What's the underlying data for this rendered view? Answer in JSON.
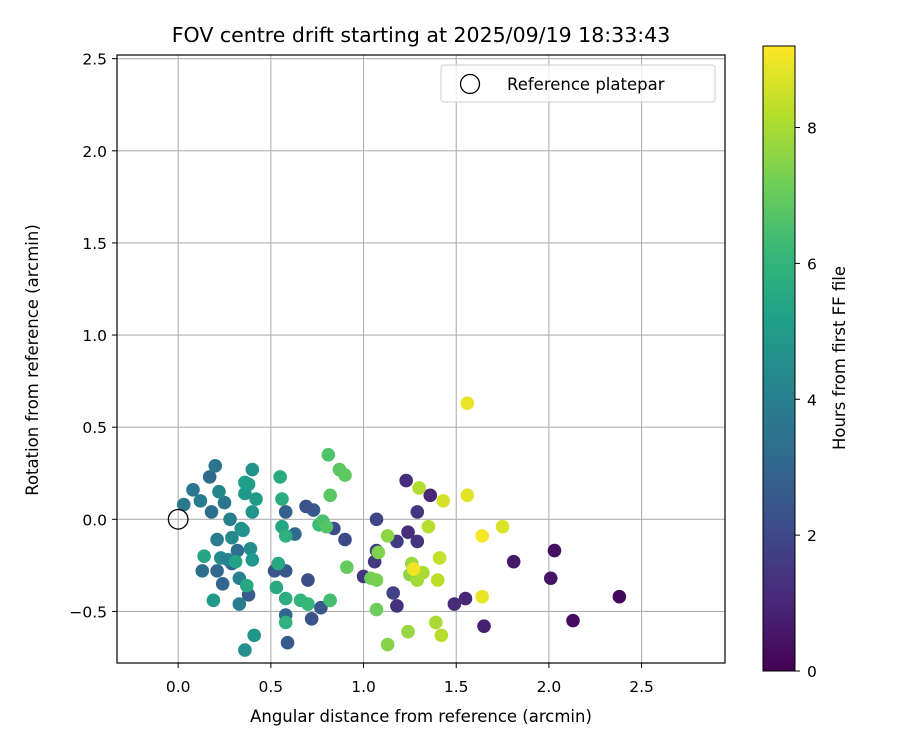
{
  "chart_data": {
    "type": "scatter",
    "title": "FOV centre drift starting at 2025/09/19 18:33:43",
    "xlabel": "Angular distance from reference (arcmin)",
    "ylabel": "Rotation from reference (arcmin)",
    "xlim": [
      -0.33,
      2.95
    ],
    "ylim": [
      -0.78,
      2.52
    ],
    "xticks": [
      0.0,
      0.5,
      1.0,
      1.5,
      2.0,
      2.5
    ],
    "xtick_labels": [
      "0.0",
      "0.5",
      "1.0",
      "1.5",
      "2.0",
      "2.5"
    ],
    "yticks": [
      -0.5,
      0.0,
      0.5,
      1.0,
      1.5,
      2.0,
      2.5
    ],
    "ytick_labels": [
      "−0.5",
      "0.0",
      "0.5",
      "1.0",
      "1.5",
      "2.0",
      "2.5"
    ],
    "grid": true,
    "legend": {
      "label": "Reference platepar",
      "placement": "top-right"
    },
    "reference_point": {
      "x": 0.0,
      "y": 0.0
    },
    "colorbar": {
      "label": "Hours from first FF file",
      "colormap": "viridis",
      "range": [
        0,
        9.2
      ],
      "ticks": [
        0,
        2,
        4,
        6,
        8
      ],
      "tick_labels": [
        "0",
        "2",
        "4",
        "6",
        "8"
      ]
    },
    "points": [
      {
        "x": 2.38,
        "y": -0.42,
        "c": 0.2
      },
      {
        "x": 2.13,
        "y": -0.55,
        "c": 0.3
      },
      {
        "x": 2.03,
        "y": -0.17,
        "c": 0.4
      },
      {
        "x": 2.01,
        "y": -0.32,
        "c": 0.5
      },
      {
        "x": 1.81,
        "y": -0.23,
        "c": 0.6
      },
      {
        "x": 1.65,
        "y": -0.58,
        "c": 0.8
      },
      {
        "x": 1.55,
        "y": -0.43,
        "c": 1.0
      },
      {
        "x": 1.49,
        "y": -0.46,
        "c": 1.1
      },
      {
        "x": 1.36,
        "y": 0.13,
        "c": 1.0
      },
      {
        "x": 1.23,
        "y": 0.21,
        "c": 1.2
      },
      {
        "x": 1.29,
        "y": 0.04,
        "c": 1.5
      },
      {
        "x": 1.29,
        "y": -0.12,
        "c": 1.4
      },
      {
        "x": 1.24,
        "y": -0.07,
        "c": 1.2
      },
      {
        "x": 1.18,
        "y": -0.12,
        "c": 1.6
      },
      {
        "x": 1.16,
        "y": -0.4,
        "c": 1.8
      },
      {
        "x": 1.18,
        "y": -0.47,
        "c": 1.3
      },
      {
        "x": 1.07,
        "y": 0.0,
        "c": 1.9
      },
      {
        "x": 1.07,
        "y": -0.17,
        "c": 1.7
      },
      {
        "x": 1.06,
        "y": -0.23,
        "c": 1.5
      },
      {
        "x": 1.0,
        "y": -0.31,
        "c": 1.4
      },
      {
        "x": 0.9,
        "y": -0.11,
        "c": 2.0
      },
      {
        "x": 0.84,
        "y": -0.05,
        "c": 2.2
      },
      {
        "x": 0.73,
        "y": 0.05,
        "c": 2.6
      },
      {
        "x": 0.69,
        "y": 0.07,
        "c": 2.3
      },
      {
        "x": 0.58,
        "y": 0.04,
        "c": 2.8
      },
      {
        "x": 0.58,
        "y": -0.28,
        "c": 2.5
      },
      {
        "x": 0.52,
        "y": -0.28,
        "c": 2.4
      },
      {
        "x": 0.7,
        "y": -0.33,
        "c": 2.2
      },
      {
        "x": 0.72,
        "y": -0.54,
        "c": 2.3
      },
      {
        "x": 0.77,
        "y": -0.48,
        "c": 2.5
      },
      {
        "x": 0.59,
        "y": -0.67,
        "c": 2.6
      },
      {
        "x": 0.58,
        "y": -0.52,
        "c": 3.0
      },
      {
        "x": 0.63,
        "y": -0.08,
        "c": 3.2
      },
      {
        "x": 0.38,
        "y": -0.41,
        "c": 2.7
      },
      {
        "x": 0.29,
        "y": -0.24,
        "c": 2.8
      },
      {
        "x": 0.32,
        "y": -0.17,
        "c": 3.3
      },
      {
        "x": 0.24,
        "y": -0.35,
        "c": 3.0
      },
      {
        "x": 0.21,
        "y": -0.28,
        "c": 3.1
      },
      {
        "x": 0.13,
        "y": -0.28,
        "c": 3.4
      },
      {
        "x": 0.17,
        "y": 0.23,
        "c": 3.2
      },
      {
        "x": 0.2,
        "y": 0.29,
        "c": 3.5
      },
      {
        "x": 0.08,
        "y": 0.16,
        "c": 3.6
      },
      {
        "x": 0.03,
        "y": 0.08,
        "c": 3.7
      },
      {
        "x": 0.12,
        "y": 0.1,
        "c": 3.8
      },
      {
        "x": 0.18,
        "y": 0.04,
        "c": 3.3
      },
      {
        "x": 0.25,
        "y": 0.09,
        "c": 3.6
      },
      {
        "x": 0.22,
        "y": 0.15,
        "c": 4.2
      },
      {
        "x": 0.28,
        "y": 0.0,
        "c": 4.0
      },
      {
        "x": 0.29,
        "y": -0.1,
        "c": 4.3
      },
      {
        "x": 0.21,
        "y": -0.11,
        "c": 3.8
      },
      {
        "x": 0.23,
        "y": -0.21,
        "c": 4.4
      },
      {
        "x": 0.27,
        "y": -0.22,
        "c": 4.1
      },
      {
        "x": 0.33,
        "y": -0.32,
        "c": 4.0
      },
      {
        "x": 0.33,
        "y": -0.46,
        "c": 3.9
      },
      {
        "x": 0.36,
        "y": -0.71,
        "c": 4.6
      },
      {
        "x": 0.4,
        "y": 0.27,
        "c": 4.7
      },
      {
        "x": 0.4,
        "y": 0.04,
        "c": 4.8
      },
      {
        "x": 0.39,
        "y": -0.16,
        "c": 4.5
      },
      {
        "x": 0.4,
        "y": -0.22,
        "c": 4.9
      },
      {
        "x": 0.41,
        "y": -0.63,
        "c": 4.8
      },
      {
        "x": 0.36,
        "y": 0.14,
        "c": 4.9
      },
      {
        "x": 0.42,
        "y": 0.11,
        "c": 5.0
      },
      {
        "x": 0.36,
        "y": 0.2,
        "c": 5.2
      },
      {
        "x": 0.38,
        "y": 0.19,
        "c": 5.1
      },
      {
        "x": 0.34,
        "y": -0.05,
        "c": 4.6
      },
      {
        "x": 0.35,
        "y": -0.06,
        "c": 4.7
      },
      {
        "x": 0.19,
        "y": -0.44,
        "c": 5.0
      },
      {
        "x": 0.14,
        "y": -0.2,
        "c": 5.4
      },
      {
        "x": 0.31,
        "y": -0.23,
        "c": 5.3
      },
      {
        "x": 0.37,
        "y": -0.36,
        "c": 5.5
      },
      {
        "x": 0.55,
        "y": 0.23,
        "c": 5.6
      },
      {
        "x": 0.56,
        "y": 0.11,
        "c": 5.7
      },
      {
        "x": 0.56,
        "y": -0.04,
        "c": 5.4
      },
      {
        "x": 0.58,
        "y": -0.09,
        "c": 5.8
      },
      {
        "x": 0.54,
        "y": -0.24,
        "c": 5.5
      },
      {
        "x": 0.53,
        "y": -0.37,
        "c": 5.6
      },
      {
        "x": 0.58,
        "y": -0.43,
        "c": 5.7
      },
      {
        "x": 0.58,
        "y": -0.56,
        "c": 5.9
      },
      {
        "x": 0.66,
        "y": -0.44,
        "c": 6.0
      },
      {
        "x": 0.7,
        "y": -0.46,
        "c": 6.1
      },
      {
        "x": 0.76,
        "y": -0.03,
        "c": 6.2
      },
      {
        "x": 0.78,
        "y": -0.01,
        "c": 6.5
      },
      {
        "x": 0.8,
        "y": -0.04,
        "c": 6.7
      },
      {
        "x": 0.81,
        "y": 0.35,
        "c": 6.6
      },
      {
        "x": 0.87,
        "y": 0.27,
        "c": 6.8
      },
      {
        "x": 0.9,
        "y": 0.24,
        "c": 6.9
      },
      {
        "x": 0.82,
        "y": 0.13,
        "c": 6.8
      },
      {
        "x": 0.82,
        "y": -0.44,
        "c": 6.4
      },
      {
        "x": 0.91,
        "y": -0.26,
        "c": 7.0
      },
      {
        "x": 1.04,
        "y": -0.32,
        "c": 7.2
      },
      {
        "x": 1.07,
        "y": -0.33,
        "c": 7.3
      },
      {
        "x": 1.07,
        "y": -0.49,
        "c": 7.1
      },
      {
        "x": 1.08,
        "y": -0.18,
        "c": 7.4
      },
      {
        "x": 1.13,
        "y": -0.68,
        "c": 7.5
      },
      {
        "x": 1.13,
        "y": -0.09,
        "c": 7.6
      },
      {
        "x": 1.24,
        "y": -0.61,
        "c": 7.7
      },
      {
        "x": 1.25,
        "y": -0.3,
        "c": 7.6
      },
      {
        "x": 1.26,
        "y": -0.24,
        "c": 7.8
      },
      {
        "x": 1.29,
        "y": -0.33,
        "c": 7.9
      },
      {
        "x": 1.32,
        "y": -0.29,
        "c": 8.0
      },
      {
        "x": 1.3,
        "y": 0.17,
        "c": 8.1
      },
      {
        "x": 1.35,
        "y": -0.04,
        "c": 8.2
      },
      {
        "x": 1.39,
        "y": -0.56,
        "c": 8.0
      },
      {
        "x": 1.4,
        "y": -0.33,
        "c": 8.3
      },
      {
        "x": 1.41,
        "y": -0.21,
        "c": 8.4
      },
      {
        "x": 1.42,
        "y": -0.63,
        "c": 8.2
      },
      {
        "x": 1.43,
        "y": 0.1,
        "c": 8.6
      },
      {
        "x": 1.56,
        "y": 0.13,
        "c": 8.8
      },
      {
        "x": 1.56,
        "y": 0.63,
        "c": 8.9
      },
      {
        "x": 1.64,
        "y": -0.42,
        "c": 8.9
      },
      {
        "x": 1.64,
        "y": -0.09,
        "c": 9.1
      },
      {
        "x": 1.75,
        "y": -0.04,
        "c": 8.7
      },
      {
        "x": 1.27,
        "y": -0.27,
        "c": 9.0
      }
    ]
  }
}
